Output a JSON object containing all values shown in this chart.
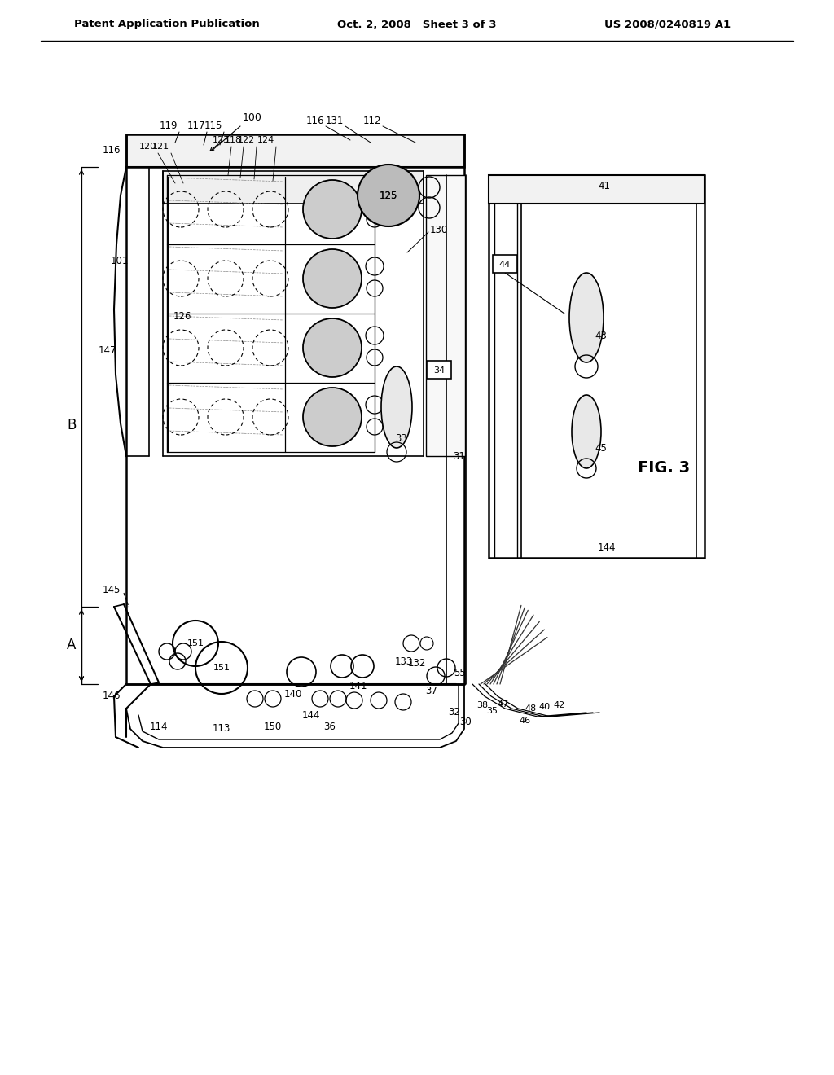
{
  "header_left": "Patent Application Publication",
  "header_center": "Oct. 2, 2008   Sheet 3 of 3",
  "header_right": "US 2008/0240819 A1",
  "fig_label": "FIG. 3",
  "bg": "#ffffff",
  "lc": "#000000"
}
